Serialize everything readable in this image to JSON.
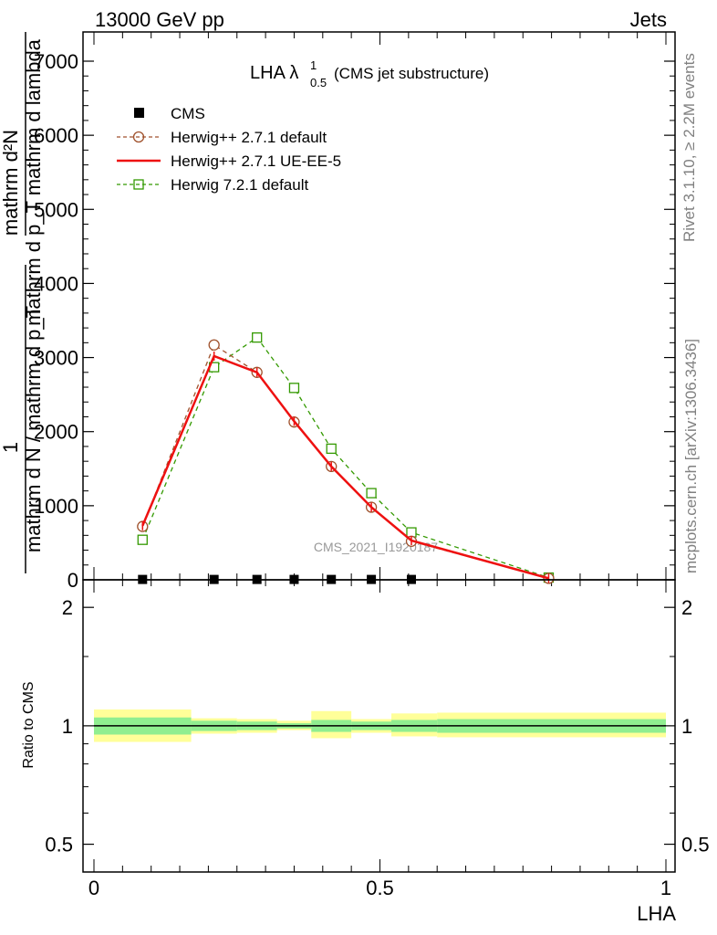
{
  "header": {
    "left": "13000 GeV pp",
    "right": "Jets"
  },
  "title": {
    "main": "LHA λ",
    "sup": "1",
    "sub": "0.5",
    "suffix": "(CMS jet substructure)"
  },
  "side_labels": {
    "rivet": "Rivet 3.1.10, ≥ 2.2M events",
    "mcplots": "mcplots.cern.ch [arXiv:1306.3436]"
  },
  "watermark": "CMS_2021_I1920187",
  "y_axis_label": {
    "numerator_one": "1",
    "numerator_frac": "mathrm d²N",
    "denominator_frac": "mathrm d p_T mathrm d lambda",
    "denominator_one": "mathrm d N / mathrm d p_T",
    "combined_top": "mathrm d p_T mathrm d lambda",
    "combined_bottom": "mathrm d N / mathrm d p_T"
  },
  "ratio_y_label": "Ratio to CMS",
  "x_label": "LHA",
  "colors": {
    "cms": "#000000",
    "herwig_default": "#a0522d",
    "herwig_ueee5": "#ee1111",
    "herwig7": "#339900",
    "band_inner": "#90ee90",
    "band_outer": "#ffff99",
    "side_text": "#808080",
    "watermark": "#999999"
  },
  "chart_data": {
    "type": "line",
    "xlim": [
      0,
      1
    ],
    "main": {
      "ylim": [
        0,
        7000
      ],
      "yticks": [
        {
          "v": 0,
          "label": "0"
        },
        {
          "v": 1000,
          "label": "1000"
        },
        {
          "v": 2000,
          "label": "2000"
        },
        {
          "v": 3000,
          "label": "3000"
        },
        {
          "v": 4000,
          "label": "4000"
        },
        {
          "v": 5000,
          "label": "5000"
        },
        {
          "v": 6000,
          "label": "6000"
        },
        {
          "v": 7000,
          "label": "7000"
        }
      ],
      "series": [
        {
          "name": "CMS",
          "style": "data",
          "x": [
            0.085,
            0.21,
            0.285,
            0.35,
            0.415,
            0.485,
            0.555
          ],
          "y": [
            5,
            5,
            5,
            5,
            5,
            5,
            5
          ]
        },
        {
          "name": "Herwig++ 2.7.1 default",
          "style": "circle-dashed",
          "x": [
            0.085,
            0.21,
            0.285,
            0.35,
            0.415,
            0.485,
            0.555,
            0.795
          ],
          "y": [
            720,
            3170,
            2800,
            2130,
            1530,
            980,
            520,
            20
          ]
        },
        {
          "name": "Herwig++ 2.7.1 UE-EE-5",
          "style": "solid",
          "x": [
            0.085,
            0.21,
            0.285,
            0.35,
            0.415,
            0.485,
            0.555,
            0.795
          ],
          "y": [
            730,
            3020,
            2800,
            2140,
            1530,
            980,
            530,
            20
          ]
        },
        {
          "name": "Herwig 7.2.1 default",
          "style": "square-dashed",
          "x": [
            0.085,
            0.21,
            0.285,
            0.35,
            0.415,
            0.485,
            0.555,
            0.795
          ],
          "y": [
            540,
            2870,
            3270,
            2590,
            1770,
            1170,
            640,
            30
          ]
        }
      ]
    },
    "ratio": {
      "ylim": [
        0.425,
        2.35
      ],
      "log": true,
      "yticks": [
        {
          "v": 0.5,
          "label": "0.5"
        },
        {
          "v": 1,
          "label": "1"
        },
        {
          "v": 2,
          "label": "2"
        }
      ],
      "xticks": [
        {
          "v": 0,
          "label": "0"
        },
        {
          "v": 0.5,
          "label": "0.5"
        },
        {
          "v": 1,
          "label": "1"
        }
      ],
      "bands": [
        {
          "x0": 0.0,
          "x1": 0.17,
          "inner": [
            0.95,
            1.05
          ],
          "outer": [
            0.91,
            1.1
          ]
        },
        {
          "x0": 0.17,
          "x1": 0.25,
          "inner": [
            0.97,
            1.03
          ],
          "outer": [
            0.955,
            1.045
          ]
        },
        {
          "x0": 0.25,
          "x1": 0.32,
          "inner": [
            0.975,
            1.025
          ],
          "outer": [
            0.96,
            1.04
          ]
        },
        {
          "x0": 0.32,
          "x1": 0.38,
          "inner": [
            0.985,
            1.015
          ],
          "outer": [
            0.975,
            1.03
          ]
        },
        {
          "x0": 0.38,
          "x1": 0.45,
          "inner": [
            0.965,
            1.035
          ],
          "outer": [
            0.93,
            1.09
          ]
        },
        {
          "x0": 0.45,
          "x1": 0.52,
          "inner": [
            0.975,
            1.025
          ],
          "outer": [
            0.96,
            1.04
          ]
        },
        {
          "x0": 0.52,
          "x1": 0.6,
          "inner": [
            0.965,
            1.035
          ],
          "outer": [
            0.94,
            1.075
          ]
        },
        {
          "x0": 0.6,
          "x1": 1.0,
          "inner": [
            0.96,
            1.04
          ],
          "outer": [
            0.935,
            1.08
          ]
        }
      ]
    }
  }
}
